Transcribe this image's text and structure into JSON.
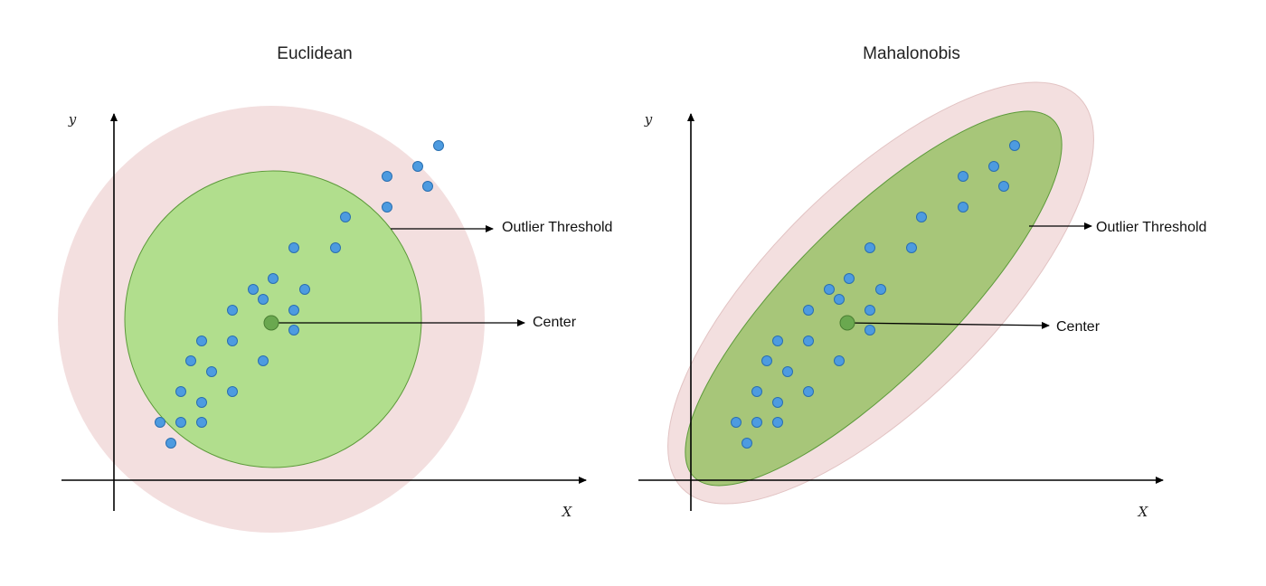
{
  "panels": [
    {
      "title": "Euclidean",
      "x_axis_label": "X",
      "y_axis_label": "y",
      "threshold_label": "Outlier Threshold",
      "center_label": "Center"
    },
    {
      "title": "Mahalonobis",
      "x_axis_label": "X",
      "y_axis_label": "y",
      "threshold_label": "Outlier Threshold",
      "center_label": "Center"
    }
  ],
  "colors": {
    "outer_region": "#f3dfdf",
    "euclidean_inner": "#b1de8d",
    "mahalanobis_inner": "#a7c679",
    "inner_stroke": "#5c9a3a",
    "center_point": "#6aa84f",
    "data_point": "#4d9be0",
    "data_point_stroke": "#2a6fb0",
    "axis": "#000000"
  }
}
